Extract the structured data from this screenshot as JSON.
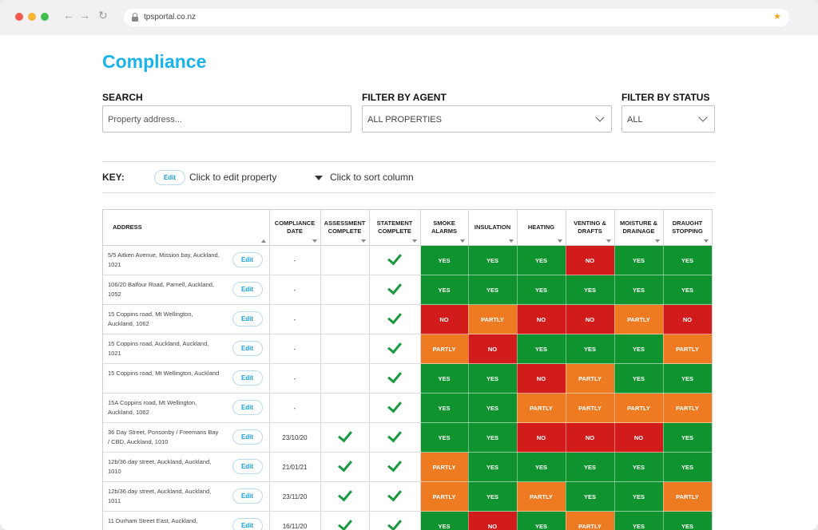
{
  "browser": {
    "url": "tpsportal.co.nz"
  },
  "page": {
    "title": "Compliance"
  },
  "filters": {
    "search_label": "SEARCH",
    "search_placeholder": "Property address...",
    "agent_label": "FILTER BY AGENT",
    "agent_value": "ALL PROPERTIES",
    "status_label": "FILTER BY STATUS",
    "status_value": "ALL"
  },
  "key": {
    "label": "KEY:",
    "edit_badge": "Edit",
    "edit_text": "Click to edit property",
    "sort_text": "Click to sort column"
  },
  "table": {
    "columns": [
      "ADDRESS",
      "COMPLIANCE DATE",
      "ASSESSMENT COMPLETE",
      "STATEMENT COMPLETE",
      "SMOKE ALARMS",
      "INSULATION",
      "HEATING",
      "VENTING & DRAFTS",
      "MOISTURE & DRAINAGE",
      "DRAUGHT STOPPING"
    ],
    "edit_label": "Edit",
    "rows": [
      {
        "address": "5/5 Aitken Avenue, Mission bay, Auckland, 1021",
        "date": "-",
        "assessment": false,
        "statement": true,
        "status": [
          "YES",
          "YES",
          "YES",
          "NO",
          "YES",
          "YES"
        ]
      },
      {
        "address": "106/20 Balfour Road, Parnell, Auckland, 1052",
        "date": "-",
        "assessment": false,
        "statement": true,
        "status": [
          "YES",
          "YES",
          "YES",
          "YES",
          "YES",
          "YES"
        ]
      },
      {
        "address": "15 Coppins road, Mt Wellington, Auckland, 1062",
        "date": "-",
        "assessment": false,
        "statement": true,
        "status": [
          "NO",
          "PARTLY",
          "NO",
          "NO",
          "PARTLY",
          "NO"
        ]
      },
      {
        "address": "15 Coppins road, Auckland, Auckland, 1021",
        "date": "-",
        "assessment": false,
        "statement": true,
        "status": [
          "PARTLY",
          "NO",
          "YES",
          "YES",
          "YES",
          "PARTLY"
        ]
      },
      {
        "address": "15 Coppins road, Mt Wellington, Auckland",
        "date": "-",
        "assessment": false,
        "statement": true,
        "status": [
          "YES",
          "YES",
          "NO",
          "PARTLY",
          "YES",
          "YES"
        ]
      },
      {
        "address": "15A Coppins road, Mt Wellington, Auckland, 1062",
        "date": "-",
        "assessment": false,
        "statement": true,
        "status": [
          "YES",
          "YES",
          "PARTLY",
          "PARTLY",
          "PARTLY",
          "PARTLY"
        ]
      },
      {
        "address": "36 Day Street, Ponsonby / Freemans Bay / CBD, Auckland, 1010",
        "date": "23/10/20",
        "assessment": true,
        "statement": true,
        "status": [
          "YES",
          "YES",
          "NO",
          "NO",
          "NO",
          "YES"
        ]
      },
      {
        "address": "12b/36 day street, Auckland, Auckland, 1010",
        "date": "21/01/21",
        "assessment": true,
        "statement": true,
        "status": [
          "PARTLY",
          "YES",
          "YES",
          "YES",
          "YES",
          "YES"
        ]
      },
      {
        "address": "12b/36 day street, Auckland, Auckland, 1011",
        "date": "23/11/20",
        "assessment": true,
        "statement": true,
        "status": [
          "PARTLY",
          "YES",
          "PARTLY",
          "YES",
          "YES",
          "PARTLY"
        ]
      },
      {
        "address": "11 Durham Street East, Auckland,",
        "date": "16/11/20",
        "assessment": true,
        "statement": true,
        "status": [
          "YES",
          "NO",
          "YES",
          "PARTLY",
          "YES",
          "YES"
        ]
      }
    ]
  },
  "colors": {
    "accent": "#18b3ec",
    "yes": "#0e932f",
    "no": "#d21b1b",
    "partly": "#ee7a22"
  }
}
